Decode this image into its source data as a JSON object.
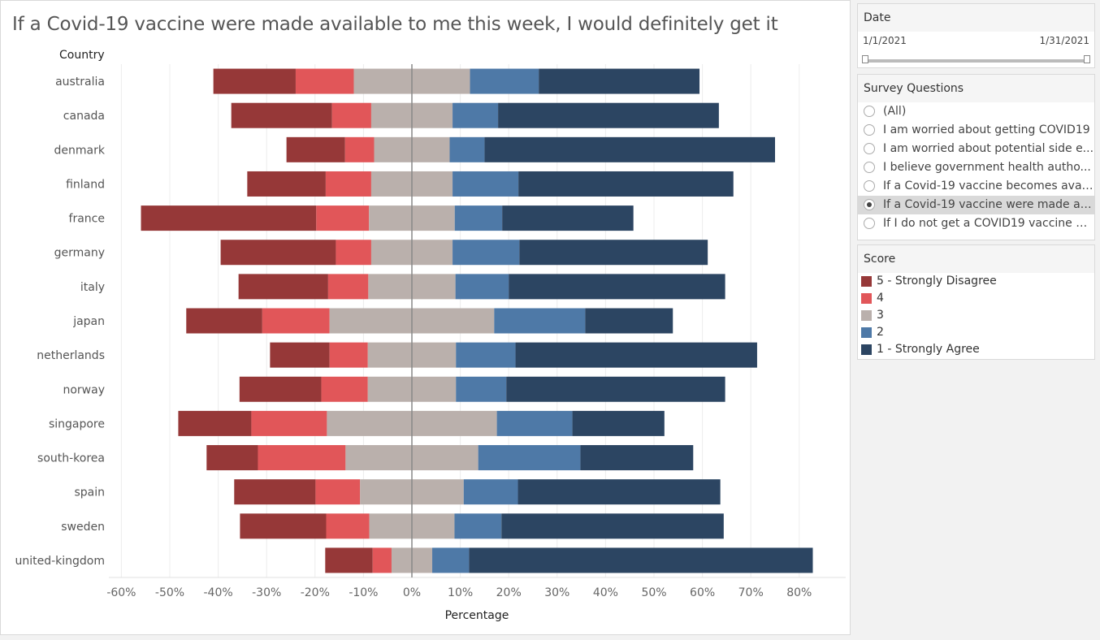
{
  "chart_data": {
    "type": "bar",
    "title": "If a Covid-19 vaccine were made available to me this week, I would definitely get it",
    "row_header": "Country",
    "xlabel": "Percentage",
    "xlim": [
      -63,
      89
    ],
    "x_ticks": [
      -60,
      -50,
      -40,
      -30,
      -20,
      -10,
      0,
      10,
      20,
      30,
      40,
      50,
      60,
      70,
      80
    ],
    "x_tick_labels": [
      "-60%",
      "-50%",
      "-40%",
      "-30%",
      "-20%",
      "-10%",
      "0%",
      "10%",
      "20%",
      "30%",
      "40%",
      "50%",
      "60%",
      "70%",
      "80%"
    ],
    "grid": true,
    "categories": [
      "australia",
      "canada",
      "denmark",
      "finland",
      "france",
      "germany",
      "italy",
      "japan",
      "netherlands",
      "norway",
      "singapore",
      "south-korea",
      "spain",
      "sweden",
      "united-kingdom"
    ],
    "series": [
      {
        "name": "5 - Strongly Disagree",
        "color": "#963838",
        "values": [
          17.0,
          20.8,
          12.1,
          16.2,
          36.2,
          23.8,
          18.5,
          15.7,
          12.3,
          16.9,
          15.1,
          10.6,
          16.8,
          17.8,
          9.8
        ]
      },
      {
        "name": "4",
        "color": "#e15659",
        "values": [
          12.0,
          8.1,
          6.0,
          9.4,
          10.9,
          7.3,
          8.3,
          13.9,
          7.9,
          9.6,
          15.6,
          18.1,
          9.2,
          8.9,
          3.9
        ]
      },
      {
        "name": "3",
        "color": "#bab0ac",
        "values": [
          24.0,
          16.8,
          15.6,
          16.8,
          17.7,
          16.8,
          18.0,
          34.0,
          18.2,
          18.2,
          35.1,
          27.4,
          21.4,
          17.6,
          8.4
        ]
      },
      {
        "name": "2",
        "color": "#4e79a7",
        "values": [
          14.2,
          9.4,
          7.2,
          13.6,
          9.8,
          13.8,
          11.0,
          18.8,
          12.3,
          10.4,
          15.6,
          21.1,
          11.2,
          9.7,
          7.6
        ]
      },
      {
        "name": "1 - Strongly Agree",
        "color": "#2c4562",
        "values": [
          33.2,
          45.6,
          60.0,
          44.4,
          27.1,
          38.9,
          44.7,
          18.1,
          49.9,
          45.2,
          19.0,
          23.3,
          41.8,
          45.9,
          71.0
        ]
      }
    ]
  },
  "filters": {
    "date": {
      "title": "Date",
      "start": "1/1/2021",
      "end": "1/31/2021"
    },
    "questions": {
      "title": "Survey Questions",
      "options": [
        {
          "label": "(All)",
          "selected": false
        },
        {
          "label": "I am worried about getting COVID19",
          "selected": false
        },
        {
          "label": "I am worried about potential side e...",
          "selected": false
        },
        {
          "label": "I believe government health autho...",
          "selected": false
        },
        {
          "label": "If a Covid-19 vaccine becomes avail...",
          "selected": false
        },
        {
          "label": "If a Covid-19 vaccine were made av...",
          "selected": true
        },
        {
          "label": "If I do not get a COVID19 vaccine w...",
          "selected": false
        }
      ]
    }
  },
  "legend": {
    "title": "Score",
    "items": [
      {
        "label": "5 - Strongly Disagree",
        "color": "#963838"
      },
      {
        "label": "4",
        "color": "#e15659"
      },
      {
        "label": "3",
        "color": "#bab0ac"
      },
      {
        "label": "2",
        "color": "#4e79a7"
      },
      {
        "label": "1 - Strongly Agree",
        "color": "#2c4562"
      }
    ]
  }
}
